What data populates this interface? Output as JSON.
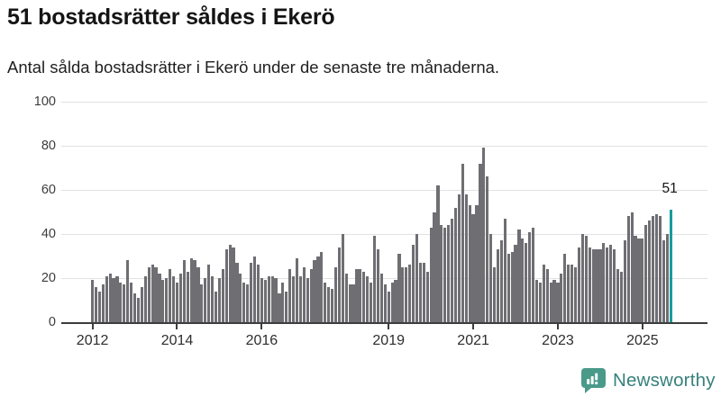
{
  "title": "51 bostadsrätter såldes i Ekerö",
  "subtitle": "Antal sålda bostadsrätter i Ekerö under de senaste tre månaderna.",
  "annotation": {
    "last_value_label": "51"
  },
  "branding": {
    "name": "Newsworthy",
    "icon": "newsworthy-chart-bubble-icon"
  },
  "colors": {
    "bar": "#6f6e73",
    "highlight": "#179c9c",
    "axis": "#3d3d3d",
    "grid": "#e2e2e2",
    "brand": "#37817c",
    "title_text": "#141414"
  },
  "chart_data": {
    "type": "bar",
    "title": "51 bostadsrätter såldes i Ekerö",
    "subtitle": "Antal sålda bostadsrätter i Ekerö under de senaste tre månaderna.",
    "grid": "horizontal",
    "legend": "none",
    "ylim": [
      0,
      100
    ],
    "y_ticks": [
      0,
      20,
      40,
      60,
      80,
      100
    ],
    "x_tick_labels": [
      "2012",
      "2014",
      "2016",
      "2019",
      "2021",
      "2023",
      "2025"
    ],
    "x_tick_month_offsets": [
      0,
      24,
      48,
      84,
      108,
      132,
      156
    ],
    "x_period": "monthly",
    "x_first_year": 2012,
    "highlight_last_value": 51,
    "values": [
      19,
      16,
      14,
      17,
      21,
      22,
      20,
      21,
      18,
      17,
      28,
      18,
      13,
      11,
      16,
      21,
      25,
      26,
      25,
      22,
      19,
      20,
      24,
      21,
      18,
      22,
      28,
      23,
      29,
      28,
      25,
      17,
      20,
      26,
      21,
      14,
      20,
      24,
      33,
      35,
      34,
      27,
      22,
      18,
      17,
      27,
      30,
      26,
      20,
      19,
      21,
      21,
      20,
      13,
      18,
      14,
      24,
      21,
      29,
      21,
      25,
      20,
      24,
      28,
      30,
      32,
      18,
      16,
      15,
      25,
      34,
      40,
      22,
      17,
      17,
      24,
      24,
      23,
      21,
      18,
      39,
      33,
      22,
      17,
      14,
      18,
      19,
      31,
      25,
      25,
      26,
      35,
      40,
      27,
      27,
      23,
      43,
      50,
      62,
      44,
      43,
      44,
      47,
      52,
      58,
      72,
      58,
      53,
      49,
      53,
      72,
      79,
      66,
      40,
      25,
      33,
      37,
      47,
      31,
      32,
      35,
      42,
      38,
      36,
      41,
      43,
      19,
      18,
      26,
      24,
      18,
      19,
      18,
      22,
      31,
      26,
      26,
      25,
      34,
      40,
      39,
      34,
      33,
      33,
      33,
      36,
      34,
      35,
      33,
      24,
      23,
      37,
      48,
      50,
      39,
      38,
      38,
      44,
      46,
      48,
      49,
      48,
      37,
      40,
      51
    ]
  }
}
